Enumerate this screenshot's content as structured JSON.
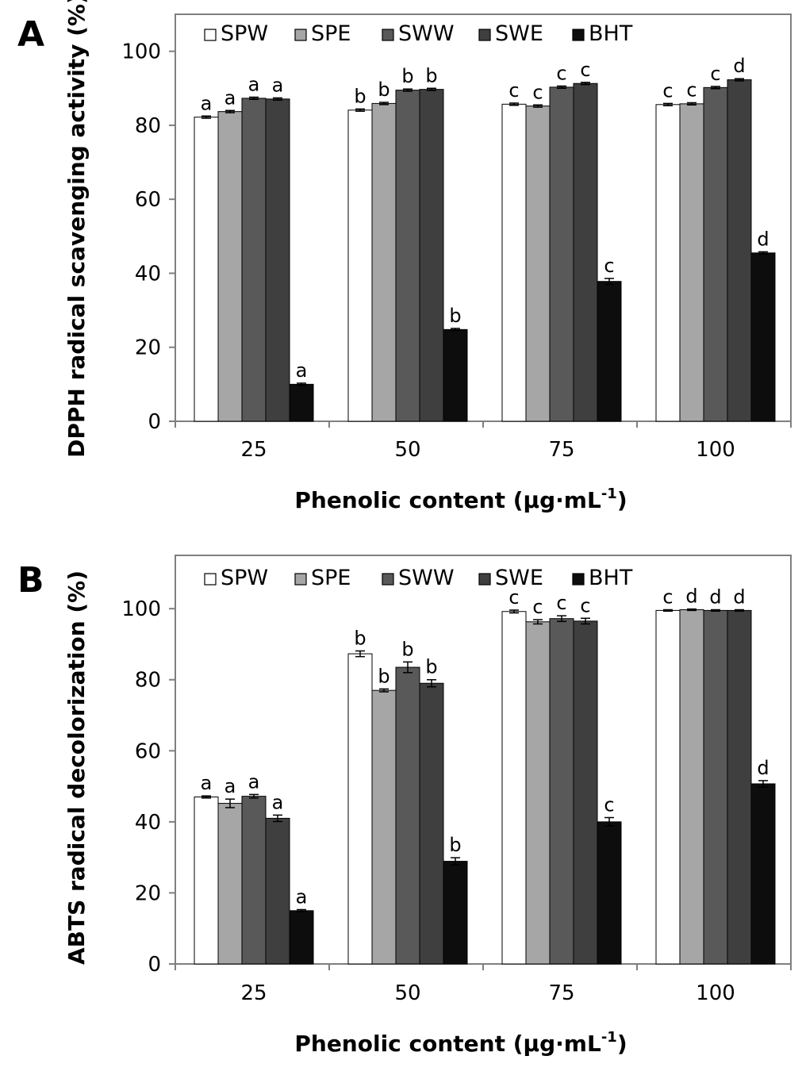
{
  "chart_data": [
    {
      "type": "bar",
      "panel": "A",
      "title": "",
      "xlabel": "Phenolic content (μg·mL",
      "xlabel_superscript": "-1",
      "xlabel_suffix": ")",
      "ylabel": "DPPH radical scavenging activity (%)",
      "ylim": [
        0,
        110
      ],
      "yticks": [
        0,
        20,
        40,
        60,
        80,
        100
      ],
      "categories": [
        "25",
        "50",
        "75",
        "100"
      ],
      "legend_position": "top",
      "grid": false,
      "series": [
        {
          "name": "SPW",
          "color": "#ffffff",
          "values": [
            82.2,
            84.1,
            85.7,
            85.6
          ],
          "errors": [
            0.3,
            0.3,
            0.3,
            0.3
          ],
          "labels": [
            "a",
            "b",
            "c",
            "c"
          ]
        },
        {
          "name": "SPE",
          "color": "#a6a6a6",
          "values": [
            83.7,
            85.9,
            85.2,
            85.8
          ],
          "errors": [
            0.3,
            0.3,
            0.3,
            0.3
          ],
          "labels": [
            "a",
            "b",
            "c",
            "c"
          ]
        },
        {
          "name": "SWW",
          "color": "#595959",
          "values": [
            87.3,
            89.5,
            90.3,
            90.2
          ],
          "errors": [
            0.3,
            0.3,
            0.3,
            0.3
          ],
          "labels": [
            "a",
            "b",
            "c",
            "c"
          ]
        },
        {
          "name": "SWE",
          "color": "#3f3f3f",
          "values": [
            87.1,
            89.7,
            91.3,
            92.3
          ],
          "errors": [
            0.3,
            0.3,
            0.3,
            0.3
          ],
          "labels": [
            "a",
            "b",
            "c",
            "d"
          ]
        },
        {
          "name": "BHT",
          "color": "#0d0d0d",
          "values": [
            10.0,
            24.8,
            37.8,
            45.5
          ],
          "errors": [
            0.3,
            0.3,
            0.8,
            0.3
          ],
          "labels": [
            "a",
            "b",
            "c",
            "d"
          ]
        }
      ]
    },
    {
      "type": "bar",
      "panel": "B",
      "title": "",
      "xlabel": "Phenolic content (μg·mL",
      "xlabel_superscript": "-1",
      "xlabel_suffix": ")",
      "ylabel": "ABTS radical decolorization (%)",
      "ylim": [
        0,
        115
      ],
      "yticks": [
        0,
        20,
        40,
        60,
        80,
        100
      ],
      "categories": [
        "25",
        "50",
        "75",
        "100"
      ],
      "legend_position": "top",
      "grid": false,
      "series": [
        {
          "name": "SPW",
          "color": "#ffffff",
          "values": [
            47.0,
            87.3,
            99.2,
            99.5
          ],
          "errors": [
            0.3,
            0.8,
            0.4,
            0.2
          ],
          "labels": [
            "a",
            "b",
            "c",
            "c"
          ]
        },
        {
          "name": "SPE",
          "color": "#a6a6a6",
          "values": [
            45.2,
            77.0,
            96.3,
            99.7
          ],
          "errors": [
            1.2,
            0.4,
            0.6,
            0.2
          ],
          "labels": [
            "a",
            "b",
            "c",
            "d"
          ]
        },
        {
          "name": "SWW",
          "color": "#595959",
          "values": [
            47.2,
            83.5,
            97.2,
            99.5
          ],
          "errors": [
            0.5,
            1.5,
            0.8,
            0.2
          ],
          "labels": [
            "a",
            "b",
            "c",
            "d"
          ]
        },
        {
          "name": "SWE",
          "color": "#3f3f3f",
          "values": [
            41.0,
            79.0,
            96.5,
            99.5
          ],
          "errors": [
            0.9,
            1.0,
            0.8,
            0.2
          ],
          "labels": [
            "a",
            "b",
            "c",
            "d"
          ]
        },
        {
          "name": "BHT",
          "color": "#0d0d0d",
          "values": [
            15.0,
            28.9,
            40.0,
            50.7
          ],
          "errors": [
            0.3,
            1.0,
            1.2,
            0.9
          ],
          "labels": [
            "a",
            "b",
            "c",
            "d"
          ]
        }
      ]
    }
  ]
}
